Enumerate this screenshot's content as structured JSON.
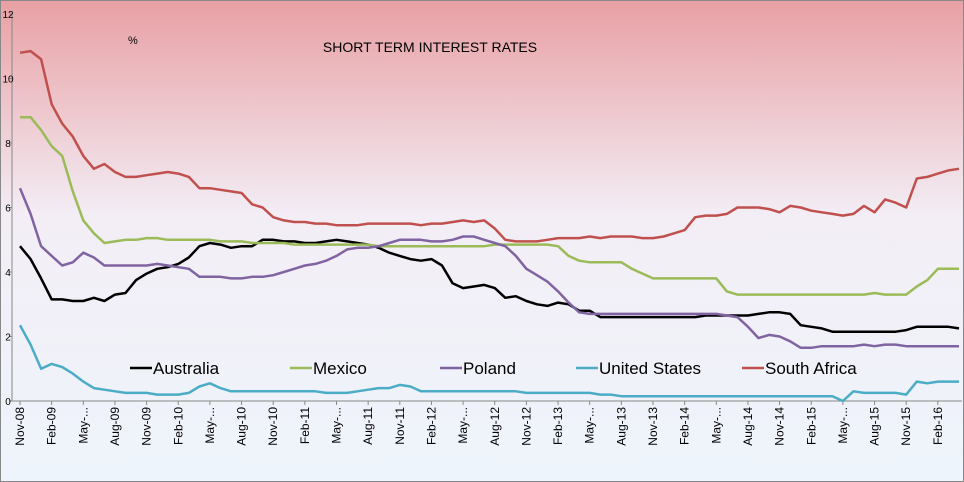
{
  "chart_data": {
    "type": "line",
    "title": "SHORT TERM INTEREST RATES",
    "y_label": "%",
    "categories": [
      "Nov-08",
      null,
      null,
      "Feb-09",
      null,
      null,
      "May-...",
      null,
      null,
      "Aug-09",
      null,
      null,
      "Nov-09",
      null,
      null,
      "Feb-10",
      null,
      null,
      "May-...",
      null,
      null,
      "Aug-10",
      null,
      null,
      "Nov-10",
      null,
      null,
      "Feb-11",
      null,
      null,
      "May-...",
      null,
      null,
      "Aug-11",
      null,
      null,
      "Nov-11",
      null,
      null,
      "Feb-12",
      null,
      null,
      "May-...",
      null,
      null,
      "Aug-12",
      null,
      null,
      "Nov-12",
      null,
      null,
      "Feb-13",
      null,
      null,
      "May-...",
      null,
      null,
      "Aug-13",
      null,
      null,
      "Nov-13",
      null,
      null,
      "Feb-14",
      null,
      null,
      "May-...",
      null,
      null,
      "Aug-14",
      null,
      null,
      "Nov-14",
      null,
      null,
      "Feb-15",
      null,
      null,
      "May-...",
      null,
      null,
      "Aug-15",
      null,
      null,
      "Nov-15",
      null,
      null,
      "Feb-16",
      null,
      null
    ],
    "series": [
      {
        "name": "Australia",
        "color": "#000000",
        "values": [
          4.8,
          4.4,
          3.8,
          3.15,
          3.15,
          3.1,
          3.1,
          3.2,
          3.1,
          3.3,
          3.35,
          3.75,
          3.95,
          4.1,
          4.15,
          4.25,
          4.45,
          4.8,
          4.9,
          4.85,
          4.75,
          4.8,
          4.8,
          5.0,
          5.0,
          4.95,
          4.95,
          4.9,
          4.9,
          4.95,
          5.0,
          4.95,
          4.9,
          4.85,
          4.75,
          4.6,
          4.5,
          4.4,
          4.35,
          4.4,
          4.2,
          3.65,
          3.5,
          3.55,
          3.6,
          3.5,
          3.2,
          3.25,
          3.1,
          3.0,
          2.95,
          3.05,
          3.0,
          2.8,
          2.8,
          2.6,
          2.6,
          2.6,
          2.6,
          2.6,
          2.6,
          2.6,
          2.6,
          2.6,
          2.6,
          2.65,
          2.65,
          2.65,
          2.65,
          2.65,
          2.7,
          2.75,
          2.75,
          2.7,
          2.35,
          2.3,
          2.25,
          2.15,
          2.15,
          2.15,
          2.15,
          2.15,
          2.15,
          2.15,
          2.2,
          2.3,
          2.3,
          2.3,
          2.3,
          2.25
        ]
      },
      {
        "name": "Mexico",
        "color": "#9bbb59",
        "values": [
          8.8,
          8.8,
          8.4,
          7.9,
          7.6,
          6.5,
          5.6,
          5.2,
          4.9,
          4.95,
          5.0,
          5.0,
          5.05,
          5.05,
          5.0,
          5.0,
          5.0,
          5.0,
          5.0,
          4.95,
          4.95,
          4.95,
          4.9,
          4.9,
          4.9,
          4.9,
          4.85,
          4.85,
          4.85,
          4.85,
          4.85,
          4.85,
          4.85,
          4.85,
          4.8,
          4.8,
          4.8,
          4.8,
          4.8,
          4.8,
          4.8,
          4.8,
          4.8,
          4.8,
          4.8,
          4.85,
          4.85,
          4.85,
          4.85,
          4.85,
          4.85,
          4.8,
          4.5,
          4.35,
          4.3,
          4.3,
          4.3,
          4.3,
          4.1,
          3.95,
          3.8,
          3.8,
          3.8,
          3.8,
          3.8,
          3.8,
          3.8,
          3.4,
          3.3,
          3.3,
          3.3,
          3.3,
          3.3,
          3.3,
          3.3,
          3.3,
          3.3,
          3.3,
          3.3,
          3.3,
          3.3,
          3.35,
          3.3,
          3.3,
          3.3,
          3.55,
          3.75,
          4.1,
          4.1,
          4.1
        ]
      },
      {
        "name": "Poland",
        "color": "#8064a2",
        "values": [
          6.6,
          5.8,
          4.8,
          4.5,
          4.2,
          4.3,
          4.6,
          4.45,
          4.2,
          4.2,
          4.2,
          4.2,
          4.2,
          4.25,
          4.2,
          4.15,
          4.1,
          3.85,
          3.85,
          3.85,
          3.8,
          3.8,
          3.85,
          3.85,
          3.9,
          4.0,
          4.1,
          4.2,
          4.25,
          4.35,
          4.5,
          4.7,
          4.75,
          4.75,
          4.8,
          4.9,
          5.0,
          5.0,
          5.0,
          4.95,
          4.95,
          5.0,
          5.1,
          5.1,
          5.0,
          4.9,
          4.8,
          4.5,
          4.1,
          3.9,
          3.7,
          3.4,
          3.05,
          2.75,
          2.7,
          2.7,
          2.7,
          2.7,
          2.7,
          2.7,
          2.7,
          2.7,
          2.7,
          2.7,
          2.7,
          2.7,
          2.7,
          2.65,
          2.6,
          2.3,
          1.95,
          2.05,
          2.0,
          1.85,
          1.65,
          1.65,
          1.7,
          1.7,
          1.7,
          1.7,
          1.75,
          1.7,
          1.75,
          1.75,
          1.7,
          1.7,
          1.7,
          1.7,
          1.7,
          1.7
        ]
      },
      {
        "name": "United States",
        "color": "#4bacc6",
        "values": [
          2.35,
          1.75,
          1.0,
          1.15,
          1.05,
          0.85,
          0.6,
          0.4,
          0.35,
          0.3,
          0.25,
          0.25,
          0.25,
          0.2,
          0.2,
          0.2,
          0.25,
          0.45,
          0.55,
          0.4,
          0.3,
          0.3,
          0.3,
          0.3,
          0.3,
          0.3,
          0.3,
          0.3,
          0.3,
          0.25,
          0.25,
          0.25,
          0.3,
          0.35,
          0.4,
          0.4,
          0.5,
          0.45,
          0.3,
          0.3,
          0.3,
          0.3,
          0.3,
          0.3,
          0.3,
          0.3,
          0.3,
          0.3,
          0.25,
          0.25,
          0.25,
          0.25,
          0.25,
          0.25,
          0.25,
          0.2,
          0.2,
          0.15,
          0.15,
          0.15,
          0.15,
          0.15,
          0.15,
          0.15,
          0.15,
          0.15,
          0.15,
          0.15,
          0.15,
          0.15,
          0.15,
          0.15,
          0.15,
          0.15,
          0.15,
          0.15,
          0.15,
          0.15,
          0.0,
          0.3,
          0.25,
          0.25,
          0.25,
          0.25,
          0.2,
          0.6,
          0.55,
          0.6,
          0.6,
          0.6
        ]
      },
      {
        "name": "South Africa",
        "color": "#c0504d",
        "values": [
          10.8,
          10.85,
          10.6,
          9.2,
          8.6,
          8.2,
          7.6,
          7.2,
          7.35,
          7.1,
          6.95,
          6.95,
          7.0,
          7.05,
          7.1,
          7.05,
          6.95,
          6.6,
          6.6,
          6.55,
          6.5,
          6.45,
          6.1,
          6.0,
          5.7,
          5.6,
          5.55,
          5.55,
          5.5,
          5.5,
          5.45,
          5.45,
          5.45,
          5.5,
          5.5,
          5.5,
          5.5,
          5.5,
          5.45,
          5.5,
          5.5,
          5.55,
          5.6,
          5.55,
          5.6,
          5.35,
          5.0,
          4.95,
          4.95,
          4.95,
          5.0,
          5.05,
          5.05,
          5.05,
          5.1,
          5.05,
          5.1,
          5.1,
          5.1,
          5.05,
          5.05,
          5.1,
          5.2,
          5.3,
          5.7,
          5.75,
          5.75,
          5.8,
          6.0,
          6.0,
          6.0,
          5.95,
          5.85,
          6.05,
          6.0,
          5.9,
          5.85,
          5.8,
          5.75,
          5.8,
          6.05,
          5.85,
          6.25,
          6.15,
          6.0,
          6.9,
          6.95,
          7.05,
          7.15,
          7.2
        ]
      }
    ],
    "ylim": [
      0,
      12
    ],
    "yticks": [
      0,
      2,
      4,
      6,
      8,
      10,
      12
    ],
    "legend": "bottom"
  }
}
